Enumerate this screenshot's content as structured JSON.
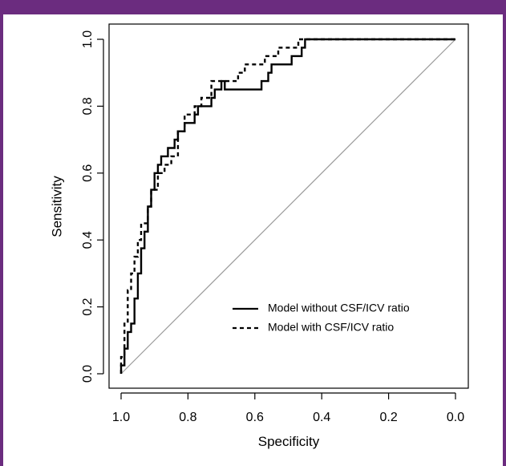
{
  "chart_data": {
    "type": "line",
    "xlabel": "Specificity",
    "ylabel": "Sensitivity",
    "xlim": [
      1.0,
      0.0
    ],
    "ylim": [
      0.0,
      1.0
    ],
    "x_reversed": true,
    "x_ticks": [
      "1.0",
      "0.8",
      "0.6",
      "0.4",
      "0.2",
      "0.0"
    ],
    "y_ticks": [
      "0.0",
      "0.2",
      "0.4",
      "0.6",
      "0.8",
      "1.0"
    ],
    "legend": {
      "placement": "bottom-right",
      "entries": [
        {
          "label": "Model without CSF/ICV ratio",
          "style": "solid"
        },
        {
          "label": "Model with CSF/ICV ratio",
          "style": "dashed"
        }
      ]
    },
    "reference_line": {
      "style": "solid",
      "color": "#9a9a9a",
      "x": [
        1.0,
        0.0
      ],
      "y": [
        0.0,
        1.0
      ]
    },
    "series": [
      {
        "style": "solid",
        "color": "#000000",
        "x": [
          1.0,
          1.0,
          0.99,
          0.99,
          0.98,
          0.98,
          0.97,
          0.97,
          0.96,
          0.96,
          0.95,
          0.95,
          0.94,
          0.94,
          0.93,
          0.93,
          0.92,
          0.92,
          0.91,
          0.91,
          0.9,
          0.9,
          0.89,
          0.89,
          0.88,
          0.88,
          0.86,
          0.86,
          0.84,
          0.84,
          0.83,
          0.83,
          0.81,
          0.81,
          0.78,
          0.78,
          0.77,
          0.77,
          0.73,
          0.73,
          0.72,
          0.72,
          0.7,
          0.7,
          0.69,
          0.69,
          0.58,
          0.58,
          0.56,
          0.56,
          0.55,
          0.55,
          0.49,
          0.49,
          0.46,
          0.46,
          0.45,
          0.45,
          0.44,
          0.44,
          0.0
        ],
        "y": [
          0.0,
          0.025,
          0.025,
          0.075,
          0.075,
          0.125,
          0.125,
          0.15,
          0.15,
          0.225,
          0.225,
          0.3,
          0.3,
          0.375,
          0.375,
          0.425,
          0.425,
          0.5,
          0.5,
          0.55,
          0.55,
          0.6,
          0.6,
          0.625,
          0.625,
          0.65,
          0.65,
          0.675,
          0.675,
          0.7,
          0.7,
          0.725,
          0.725,
          0.75,
          0.75,
          0.775,
          0.775,
          0.8,
          0.8,
          0.825,
          0.825,
          0.85,
          0.85,
          0.875,
          0.875,
          0.85,
          0.85,
          0.875,
          0.875,
          0.9,
          0.9,
          0.925,
          0.925,
          0.95,
          0.95,
          0.975,
          0.975,
          1.0,
          1.0,
          1.0,
          1.0
        ]
      },
      {
        "style": "dashed",
        "color": "#000000",
        "x": [
          1.0,
          1.0,
          0.99,
          0.99,
          0.98,
          0.98,
          0.97,
          0.97,
          0.96,
          0.96,
          0.95,
          0.95,
          0.94,
          0.94,
          0.92,
          0.92,
          0.91,
          0.91,
          0.89,
          0.89,
          0.87,
          0.87,
          0.85,
          0.85,
          0.83,
          0.83,
          0.81,
          0.81,
          0.78,
          0.78,
          0.76,
          0.76,
          0.73,
          0.73,
          0.65,
          0.65,
          0.63,
          0.63,
          0.57,
          0.57,
          0.53,
          0.53,
          0.47,
          0.47,
          0.45,
          0.45,
          0.0
        ],
        "y": [
          0.0,
          0.05,
          0.05,
          0.15,
          0.15,
          0.25,
          0.25,
          0.3,
          0.3,
          0.35,
          0.35,
          0.4,
          0.4,
          0.45,
          0.45,
          0.5,
          0.5,
          0.55,
          0.55,
          0.6,
          0.6,
          0.625,
          0.625,
          0.65,
          0.65,
          0.725,
          0.725,
          0.775,
          0.775,
          0.8,
          0.8,
          0.825,
          0.825,
          0.875,
          0.875,
          0.9,
          0.9,
          0.925,
          0.925,
          0.95,
          0.95,
          0.975,
          0.975,
          1.0,
          1.0,
          1.0,
          1.0
        ]
      }
    ]
  }
}
